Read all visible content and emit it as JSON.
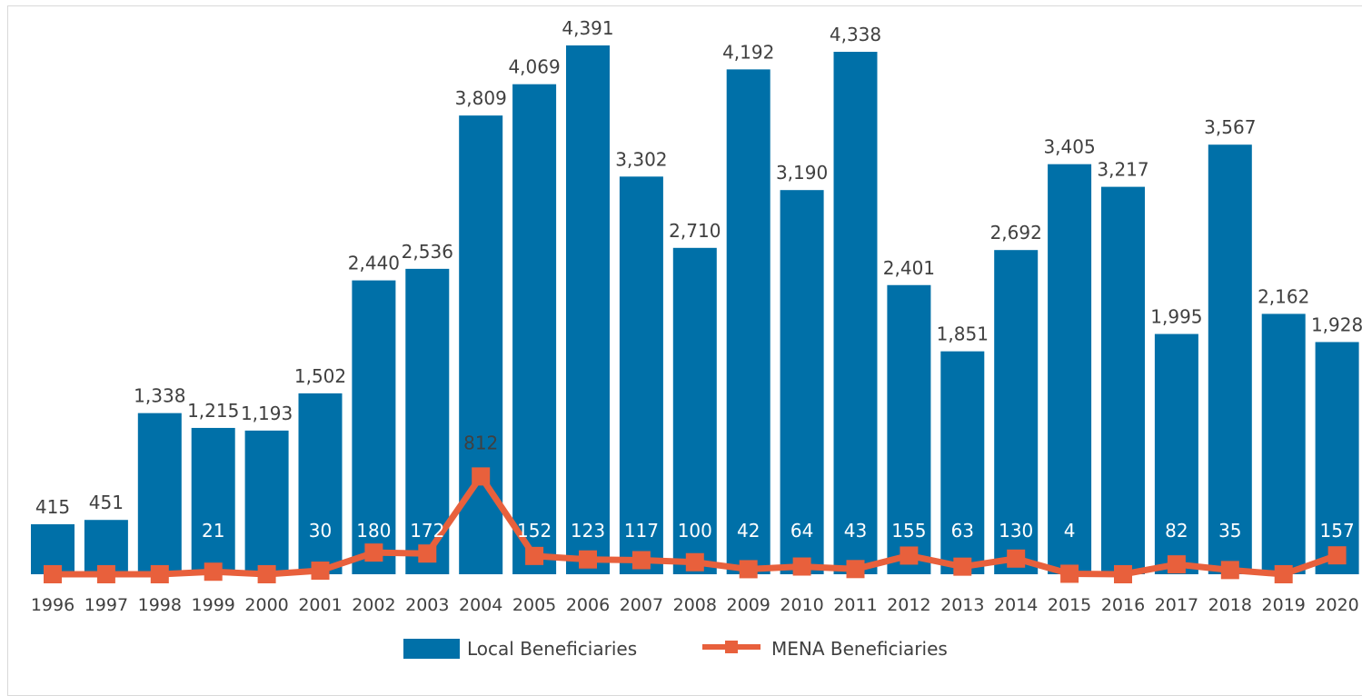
{
  "chart_data": {
    "type": "bar",
    "categories": [
      "1996",
      "1997",
      "1998",
      "1999",
      "2000",
      "2001",
      "2002",
      "2003",
      "2004",
      "2005",
      "2006",
      "2007",
      "2008",
      "2009",
      "2010",
      "2011",
      "2012",
      "2013",
      "2014",
      "2015",
      "2016",
      "2017",
      "2018",
      "2019",
      "2020"
    ],
    "series": [
      {
        "name": "Local Beneficiaries",
        "type": "bar",
        "color": "#0070a8",
        "values": [
          415,
          451,
          1338,
          1215,
          1193,
          1502,
          2440,
          2536,
          3809,
          4069,
          4391,
          3302,
          2710,
          4192,
          3190,
          4338,
          2401,
          1851,
          2692,
          3405,
          3217,
          1995,
          3567,
          2162,
          1928
        ],
        "labels": [
          "415",
          "451",
          "1,338",
          "1,215",
          "1,193",
          "1,502",
          "2,440",
          "2,536",
          "3,809",
          "4,069",
          "4,391",
          "3,302",
          "2,710",
          "4,192",
          "3,190",
          "4,338",
          "2,401",
          "1,851",
          "2,692",
          "3,405",
          "3,217",
          "1,995",
          "3,567",
          "2,162",
          "1,928"
        ]
      },
      {
        "name": "MENA Beneficiaries",
        "type": "line",
        "color": "#e8603c",
        "values": [
          null,
          null,
          null,
          21,
          null,
          30,
          180,
          172,
          812,
          152,
          123,
          117,
          100,
          42,
          64,
          43,
          155,
          63,
          130,
          4,
          null,
          82,
          35,
          null,
          157
        ],
        "labels": [
          "",
          "",
          "",
          "21",
          "",
          "30",
          "180",
          "172",
          "812",
          "152",
          "123",
          "117",
          "100",
          "42",
          "64",
          "43",
          "155",
          "63",
          "130",
          "4",
          "",
          "82",
          "35",
          "",
          "157"
        ]
      }
    ],
    "ylim": [
      0,
      4391
    ],
    "grid": false,
    "legend_position": "bottom"
  }
}
